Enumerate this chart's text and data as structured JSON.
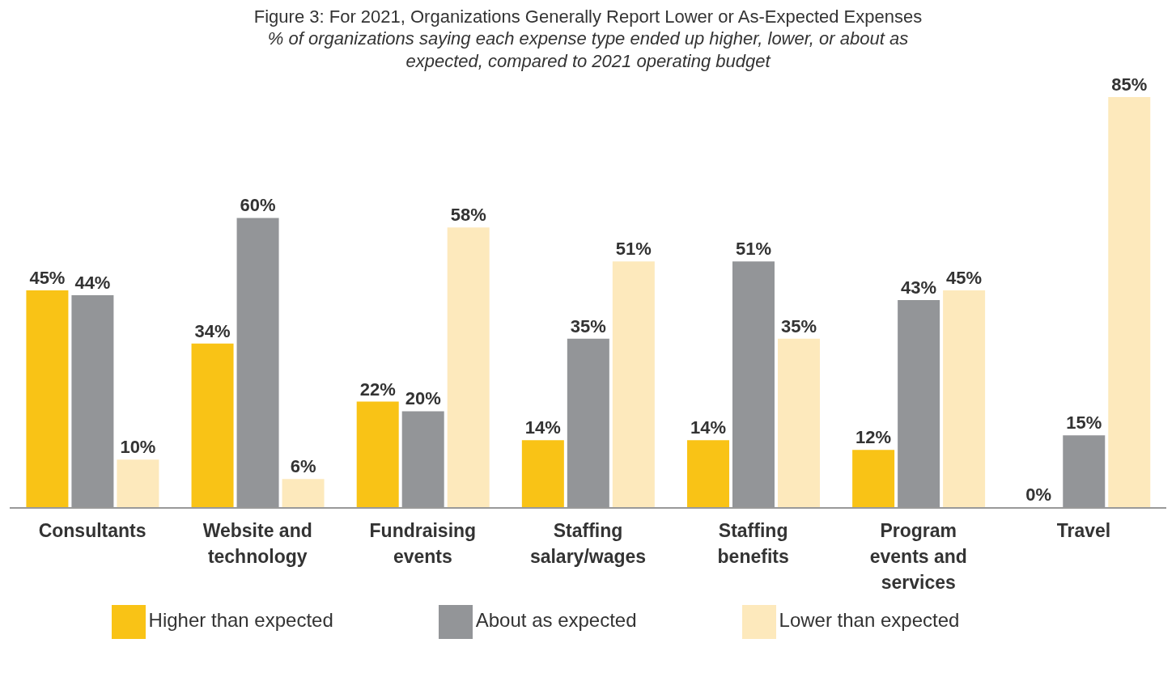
{
  "chart_data": {
    "type": "bar",
    "title": "Figure 3: For 2021, Organizations Generally Report Lower or As-Expected Expenses",
    "subtitle": "% of organizations saying each expense type ended up higher, lower, or about as expected, compared to 2021 operating budget",
    "categories": [
      "Consultants",
      "Website and technology",
      "Fundraising events",
      "Staffing salary/wages",
      "Staffing benefits",
      "Program events and services",
      "Travel"
    ],
    "series": [
      {
        "name": "Higher than expected",
        "color": "#f9c316",
        "values": [
          45,
          34,
          22,
          14,
          14,
          12,
          0
        ],
        "value_labels": [
          "45%",
          "34%",
          "22%",
          "14%",
          "14%",
          "12%",
          "0%"
        ]
      },
      {
        "name": "About as expected",
        "color": "#939598",
        "values": [
          44,
          60,
          20,
          35,
          51,
          43,
          15
        ],
        "value_labels": [
          "44%",
          "60%",
          "20%",
          "35%",
          "51%",
          "43%",
          "15%"
        ]
      },
      {
        "name": "Lower than expected",
        "color": "#fde9bc",
        "values": [
          10,
          6,
          58,
          51,
          35,
          45,
          85
        ],
        "value_labels": [
          "10%",
          "6%",
          "58%",
          "51%",
          "35%",
          "45%",
          "85%"
        ]
      }
    ],
    "grid": false,
    "legend": "bottom"
  }
}
